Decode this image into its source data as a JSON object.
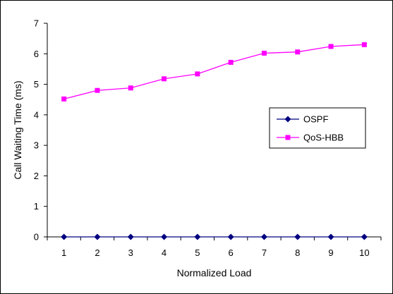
{
  "chart_data": {
    "type": "line",
    "title": "",
    "xlabel": "Normalized Load",
    "ylabel": "Call Waiting Time (ms)",
    "categories": [
      "1",
      "2",
      "3",
      "4",
      "5",
      "6",
      "7",
      "8",
      "9",
      "10"
    ],
    "ylim": [
      0,
      7
    ],
    "yticks": [
      "0",
      "1",
      "2",
      "3",
      "4",
      "5",
      "6",
      "7"
    ],
    "grid": false,
    "legend_position": "right",
    "series": [
      {
        "name": "OSPF",
        "color": "#000080",
        "marker": "diamond",
        "values": [
          0,
          0,
          0,
          0,
          0,
          0,
          0,
          0,
          0,
          0
        ]
      },
      {
        "name": "QoS-HBB",
        "color": "#FF00FF",
        "marker": "square",
        "values": [
          4.52,
          4.8,
          4.88,
          5.18,
          5.34,
          5.72,
          6.02,
          6.06,
          6.24,
          6.3
        ]
      }
    ]
  }
}
